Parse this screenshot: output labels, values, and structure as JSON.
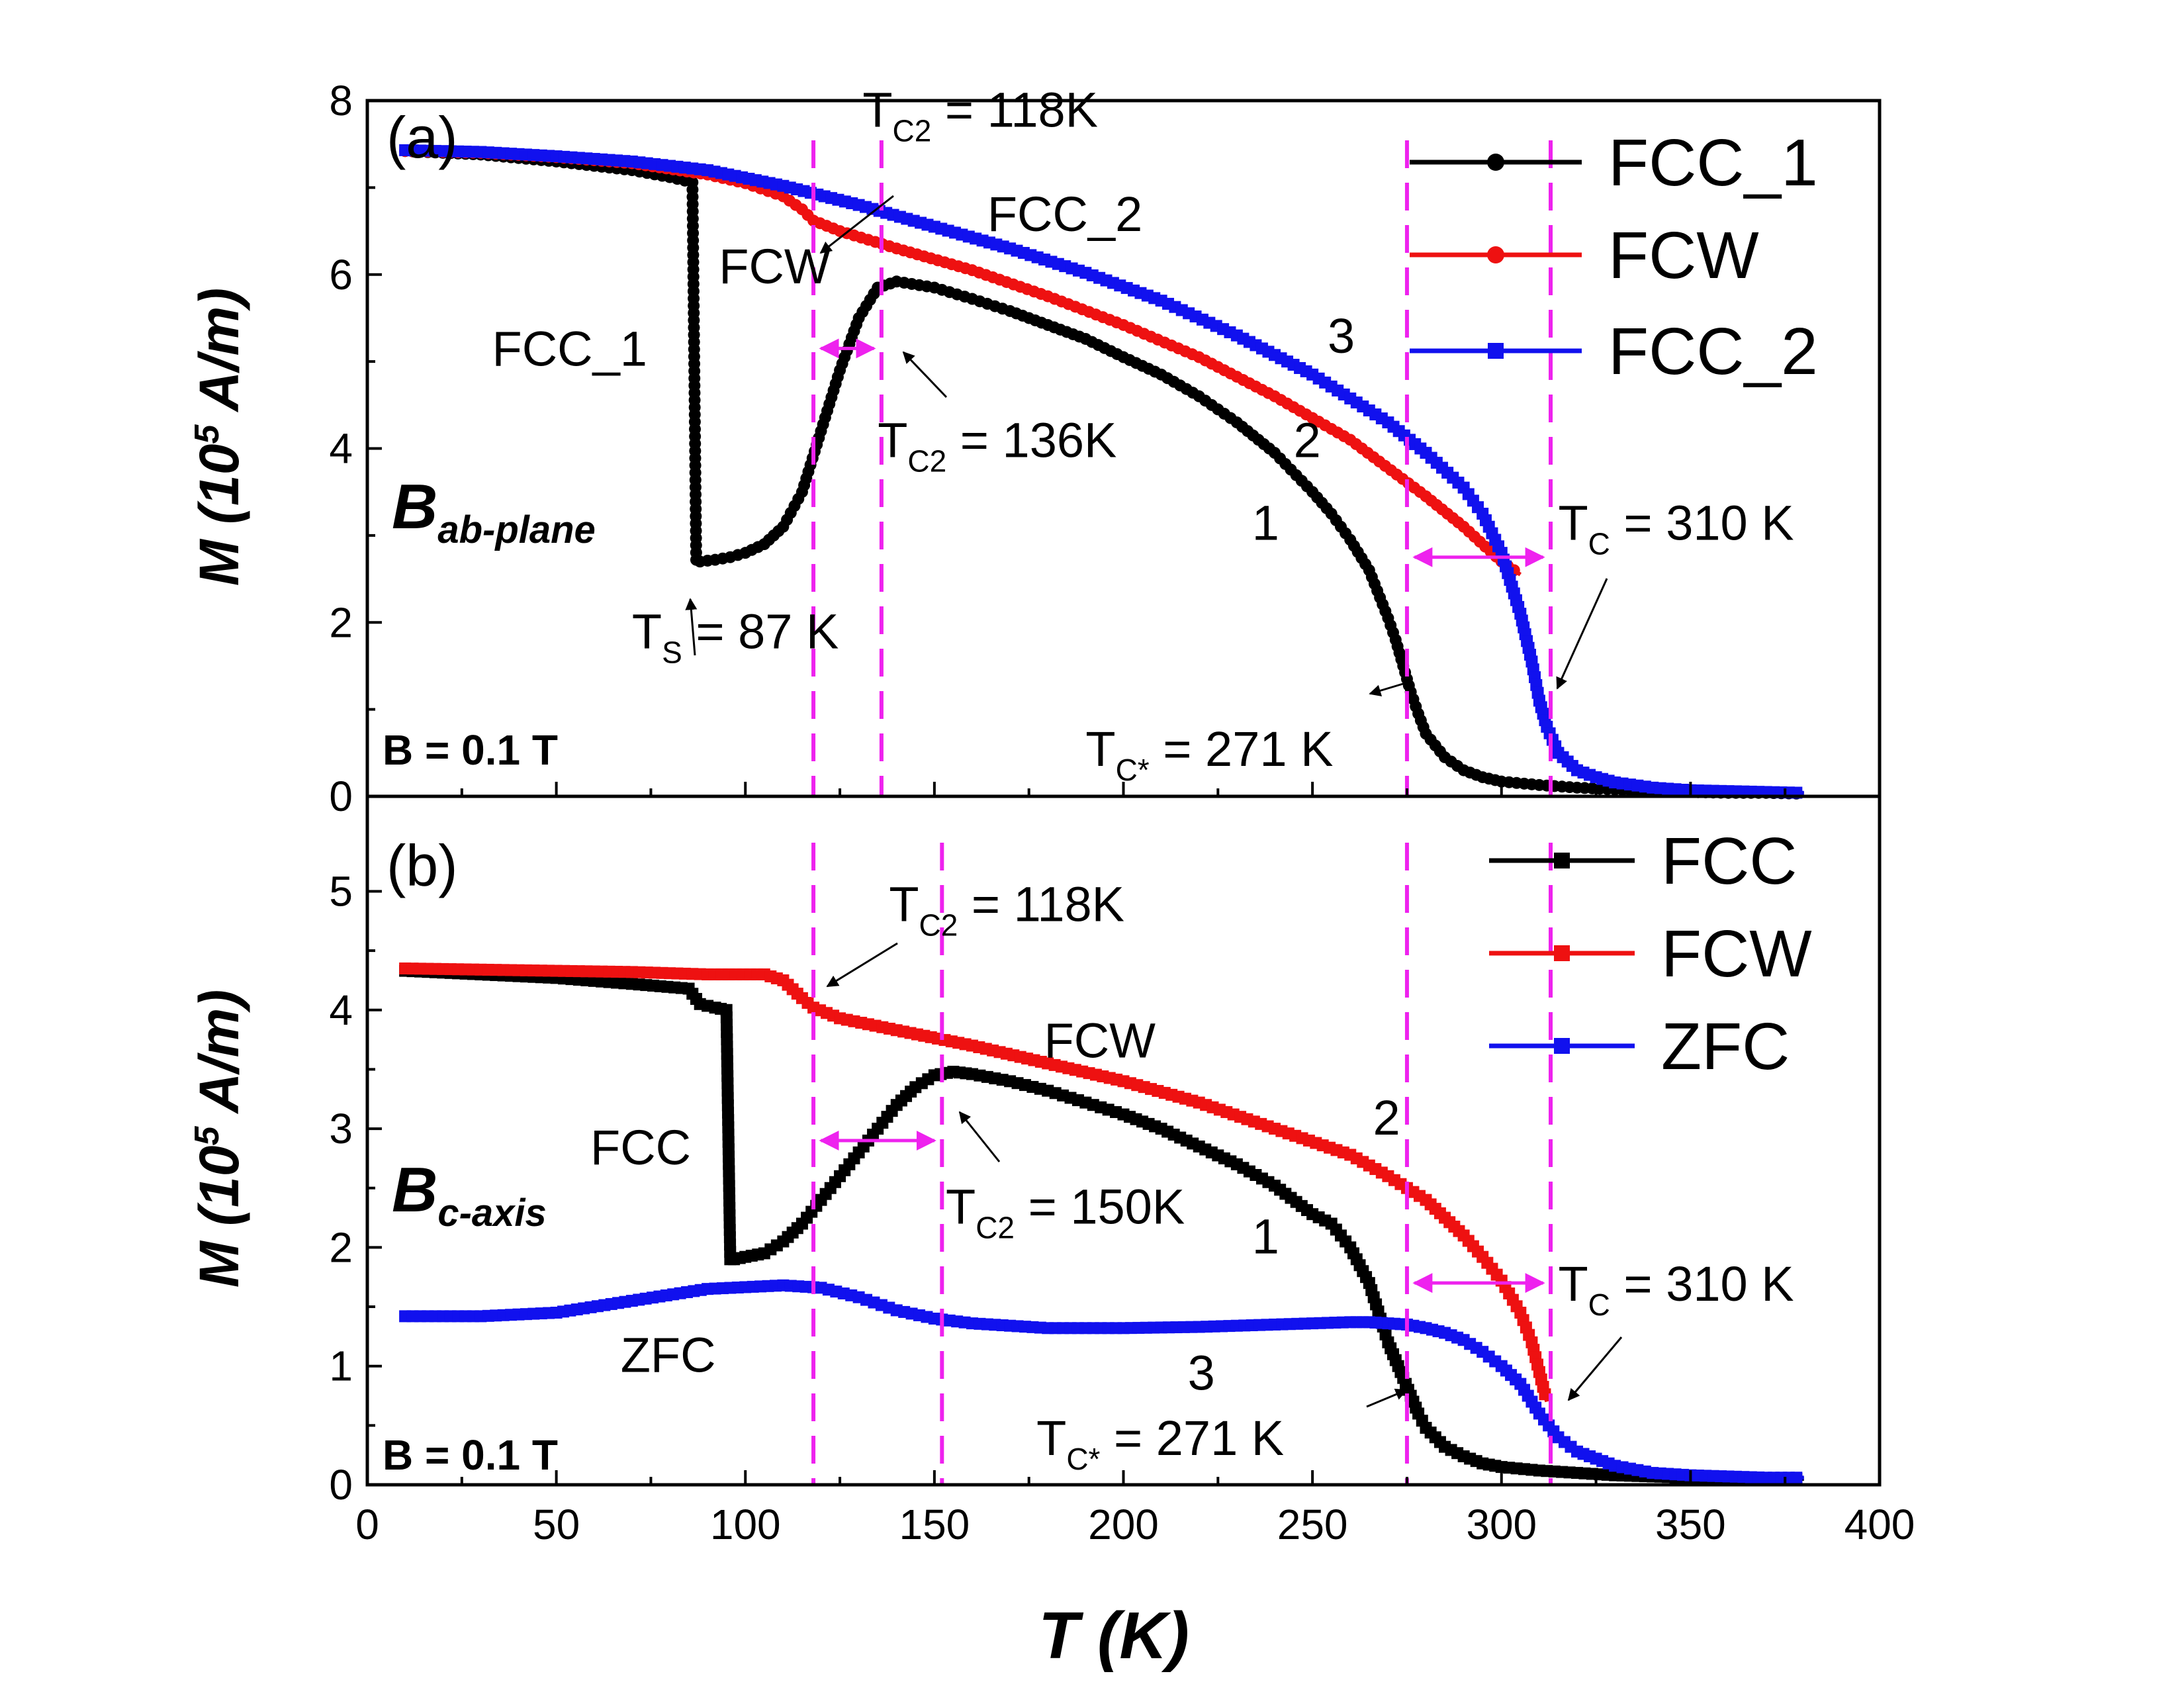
{
  "colors": {
    "black": "#000000",
    "red": "#ee1111",
    "blue": "#1111ee",
    "magenta": "#ee22ee"
  },
  "chart_data": [
    {
      "id": "a",
      "type": "line",
      "panel_label": "(a)",
      "xlim": [
        0,
        400
      ],
      "ylim": [
        0,
        8
      ],
      "yticks": [
        "0",
        "2",
        "4",
        "6",
        "8"
      ],
      "ylabel": {
        "main": "M (10",
        "sup": "5",
        "tail": " A/m)"
      },
      "field_label": "B = 0.1 T",
      "direction": {
        "main": "B",
        "sub": "ab-plane"
      },
      "legend": [
        "FCC_1",
        "FCW",
        "FCC_2"
      ],
      "series": [
        {
          "name": "FCC_1",
          "color": "#000000",
          "marker": "circle",
          "x": [
            10,
            30,
            50,
            70,
            80,
            86,
            87,
            88,
            92,
            96,
            100,
            105,
            110,
            115,
            120,
            125,
            130,
            135,
            140,
            150,
            160,
            170,
            180,
            190,
            200,
            210,
            220,
            230,
            240,
            250,
            255,
            260,
            265,
            270,
            272,
            274,
            276,
            278,
            280,
            285,
            290,
            295,
            300,
            310,
            320,
            330,
            340,
            350,
            360,
            370,
            380
          ],
          "y": [
            7.42,
            7.38,
            7.3,
            7.2,
            7.12,
            7.06,
            2.72,
            2.7,
            2.72,
            2.75,
            2.8,
            2.9,
            3.1,
            3.5,
            4.2,
            4.9,
            5.5,
            5.85,
            5.92,
            5.85,
            5.72,
            5.58,
            5.42,
            5.26,
            5.05,
            4.85,
            4.6,
            4.3,
            3.95,
            3.5,
            3.25,
            2.95,
            2.6,
            2.05,
            1.8,
            1.5,
            1.2,
            0.95,
            0.72,
            0.45,
            0.3,
            0.22,
            0.17,
            0.13,
            0.1,
            0.08,
            0.06,
            0.05,
            0.04,
            0.04,
            0.03
          ]
        },
        {
          "name": "FCW",
          "color": "#ee1111",
          "marker": "circle",
          "x": [
            10,
            30,
            50,
            70,
            90,
            100,
            110,
            115,
            118,
            125,
            140,
            160,
            180,
            200,
            220,
            240,
            260,
            280,
            290,
            300,
            305
          ],
          "y": [
            7.42,
            7.4,
            7.35,
            7.28,
            7.15,
            7.05,
            6.9,
            6.75,
            6.62,
            6.5,
            6.3,
            6.05,
            5.75,
            5.42,
            5.05,
            4.6,
            4.1,
            3.45,
            3.1,
            2.7,
            2.55
          ]
        },
        {
          "name": "FCC_2",
          "color": "#1111ee",
          "marker": "square",
          "x": [
            10,
            30,
            50,
            70,
            90,
            110,
            130,
            150,
            170,
            190,
            210,
            230,
            250,
            270,
            280,
            290,
            295,
            300,
            305,
            308,
            310,
            312,
            315,
            320,
            325,
            330,
            340,
            350,
            360,
            370,
            380
          ],
          "y": [
            7.43,
            7.41,
            7.36,
            7.3,
            7.2,
            7.02,
            6.8,
            6.55,
            6.3,
            6.02,
            5.7,
            5.3,
            4.85,
            4.3,
            3.95,
            3.55,
            3.25,
            2.8,
            2.1,
            1.55,
            1.1,
            0.8,
            0.5,
            0.3,
            0.22,
            0.16,
            0.1,
            0.07,
            0.06,
            0.05,
            0.04
          ]
        }
      ],
      "vlines": [
        118,
        136,
        275,
        313
      ],
      "arrows": [
        {
          "from": 120,
          "to": 134,
          "y": 5.15
        },
        {
          "from": 277,
          "to": 311,
          "y": 2.75
        }
      ],
      "annotations": [
        {
          "text": "T",
          "sub": "C2",
          "tail": " = 118K",
          "x": 131,
          "y": 7.7,
          "anchor": "start",
          "color": "#000000"
        },
        {
          "text": "FCC_2",
          "x": 164,
          "y": 6.5,
          "anchor": "start",
          "color": "#1111ee"
        },
        {
          "text": "FCW",
          "x": 93,
          "y": 5.9,
          "anchor": "start",
          "color": "#ee1111"
        },
        {
          "text": "FCC_1",
          "x": 33,
          "y": 4.95,
          "anchor": "start",
          "color": "#000000"
        },
        {
          "text": "T",
          "sub": "C2",
          "tail": " = 136K",
          "x": 135,
          "y": 3.9,
          "anchor": "start",
          "color": "#000000"
        },
        {
          "text": "3",
          "x": 254,
          "y": 5.1,
          "anchor": "start",
          "color": "#000000"
        },
        {
          "text": "2",
          "x": 245,
          "y": 3.9,
          "anchor": "start",
          "color": "#000000"
        },
        {
          "text": "1",
          "x": 234,
          "y": 2.95,
          "anchor": "start",
          "color": "#000000"
        },
        {
          "text": "T",
          "sub": "C",
          "tail": " =  310 K",
          "x": 315,
          "y": 2.95,
          "anchor": "start",
          "color": "#000000"
        },
        {
          "text": "T",
          "sub": "S",
          "tail": " = 87 K",
          "x": 70,
          "y": 1.7,
          "anchor": "start",
          "color": "#000000"
        },
        {
          "text": "T",
          "sub": "C*",
          "tail": " =    271 K",
          "x": 190,
          "y": 0.35,
          "anchor": "start",
          "color": "#000000"
        }
      ]
    },
    {
      "id": "b",
      "type": "line",
      "panel_label": "(b)",
      "xlim": [
        0,
        400
      ],
      "ylim": [
        0,
        5.8
      ],
      "yticks": [
        "0",
        "1",
        "2",
        "3",
        "4",
        "5"
      ],
      "xticks": [
        "0",
        "50",
        "100",
        "150",
        "200",
        "250",
        "300",
        "350",
        "400"
      ],
      "xlabel": "T (K)",
      "ylabel": {
        "main": "M (10",
        "sup": "5",
        "tail": " A/m)"
      },
      "field_label": "B =  0.1 T",
      "direction": {
        "main": "B",
        "sub": "c-axis"
      },
      "legend": [
        "FCC",
        "FCW",
        "ZFC"
      ],
      "series": [
        {
          "name": "FCC",
          "color": "#000000",
          "marker": "square",
          "x": [
            10,
            30,
            50,
            70,
            85,
            88,
            92,
            95,
            96,
            97,
            100,
            105,
            110,
            115,
            120,
            125,
            130,
            135,
            140,
            145,
            150,
            155,
            160,
            170,
            180,
            190,
            200,
            210,
            220,
            230,
            240,
            250,
            255,
            260,
            265,
            268,
            270,
            272,
            274,
            276,
            278,
            280,
            285,
            290,
            295,
            300,
            310,
            320,
            330,
            340,
            350,
            360,
            370,
            380
          ],
          "y": [
            4.33,
            4.3,
            4.27,
            4.22,
            4.18,
            4.05,
            4.02,
            4.0,
            1.9,
            1.9,
            1.92,
            1.95,
            2.05,
            2.2,
            2.4,
            2.6,
            2.8,
            3.0,
            3.2,
            3.35,
            3.45,
            3.48,
            3.46,
            3.4,
            3.32,
            3.22,
            3.12,
            3.0,
            2.85,
            2.7,
            2.52,
            2.28,
            2.2,
            2.0,
            1.7,
            1.4,
            1.2,
            1.05,
            0.9,
            0.75,
            0.6,
            0.48,
            0.32,
            0.24,
            0.18,
            0.15,
            0.12,
            0.1,
            0.08,
            0.07,
            0.06,
            0.05,
            0.05,
            0.05
          ]
        },
        {
          "name": "FCW",
          "color": "#ee1111",
          "marker": "square",
          "x": [
            10,
            30,
            50,
            70,
            90,
            105,
            110,
            115,
            118,
            125,
            140,
            160,
            180,
            200,
            220,
            240,
            260,
            270,
            280,
            285,
            290,
            295,
            300,
            305,
            308,
            312
          ],
          "y": [
            4.35,
            4.34,
            4.33,
            4.32,
            4.3,
            4.3,
            4.25,
            4.1,
            4.02,
            3.93,
            3.83,
            3.7,
            3.55,
            3.4,
            3.22,
            3.0,
            2.78,
            2.6,
            2.4,
            2.25,
            2.1,
            1.92,
            1.72,
            1.45,
            1.2,
            0.7
          ]
        },
        {
          "name": "ZFC",
          "color": "#1111ee",
          "marker": "square",
          "x": [
            10,
            30,
            50,
            70,
            90,
            110,
            120,
            130,
            140,
            150,
            160,
            180,
            200,
            220,
            240,
            250,
            260,
            265,
            270,
            275,
            280,
            285,
            290,
            295,
            300,
            305,
            310,
            315,
            320,
            330,
            340,
            350,
            360,
            370,
            380
          ],
          "y": [
            1.42,
            1.42,
            1.45,
            1.55,
            1.65,
            1.68,
            1.66,
            1.58,
            1.47,
            1.4,
            1.36,
            1.32,
            1.32,
            1.33,
            1.35,
            1.36,
            1.37,
            1.37,
            1.36,
            1.35,
            1.32,
            1.28,
            1.22,
            1.12,
            1.0,
            0.85,
            0.6,
            0.4,
            0.28,
            0.16,
            0.1,
            0.08,
            0.07,
            0.06,
            0.06
          ]
        }
      ],
      "vlines": [
        118,
        152,
        275,
        313
      ],
      "arrows": [
        {
          "from": 120,
          "to": 150,
          "y": 2.9
        },
        {
          "from": 277,
          "to": 311,
          "y": 1.7
        }
      ],
      "annotations": [
        {
          "text": "T",
          "sub": "C2",
          "tail": " = 118K",
          "x": 138,
          "y": 4.75,
          "anchor": "start",
          "color": "#000000"
        },
        {
          "text": "FCW",
          "x": 179,
          "y": 3.6,
          "anchor": "start",
          "color": "#ee1111"
        },
        {
          "text": "FCC",
          "x": 59,
          "y": 2.7,
          "anchor": "start",
          "color": "#000000"
        },
        {
          "text": "T",
          "sub": "C2",
          "tail": " = 150K",
          "x": 153,
          "y": 2.2,
          "anchor": "start",
          "color": "#000000"
        },
        {
          "text": "2",
          "x": 266,
          "y": 2.95,
          "anchor": "start",
          "color": "#000000"
        },
        {
          "text": "1",
          "x": 234,
          "y": 1.95,
          "anchor": "start",
          "color": "#000000"
        },
        {
          "text": "3",
          "x": 217,
          "y": 0.8,
          "anchor": "start",
          "color": "#000000"
        },
        {
          "text": "ZFC",
          "x": 67,
          "y": 0.95,
          "anchor": "start",
          "color": "#1111ee"
        },
        {
          "text": "T",
          "sub": "C",
          "tail": " =  310 K",
          "x": 315,
          "y": 1.55,
          "anchor": "start",
          "color": "#000000"
        },
        {
          "text": "T",
          "sub": "C*",
          "tail": " =    271 K",
          "x": 177,
          "y": 0.25,
          "anchor": "start",
          "color": "#000000"
        }
      ]
    }
  ]
}
